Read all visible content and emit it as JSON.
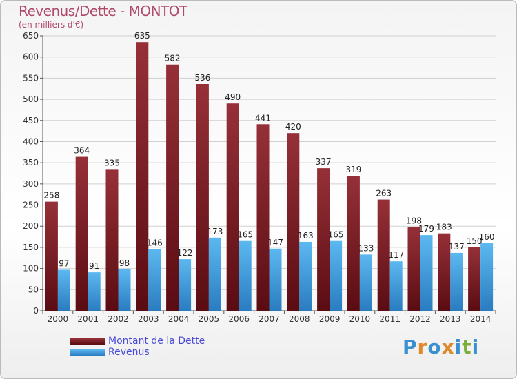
{
  "chart_data": {
    "type": "bar",
    "title": "Revenus/Dette - MONTOT",
    "subtitle": "(en milliers d'€)",
    "xlabel": "",
    "ylabel": "",
    "ylim": [
      0,
      650
    ],
    "yticks": [
      0,
      50,
      100,
      150,
      200,
      250,
      300,
      350,
      400,
      450,
      500,
      550,
      600,
      650
    ],
    "grid": true,
    "legend_position": "bottom-left",
    "categories": [
      "2000",
      "2001",
      "2002",
      "2003",
      "2004",
      "2005",
      "2006",
      "2007",
      "2008",
      "2009",
      "2010",
      "2011",
      "2012",
      "2013",
      "2014"
    ],
    "series": [
      {
        "name": "Montant de la Dette",
        "color": "#7a1c24",
        "values": [
          258,
          364,
          335,
          635,
          582,
          536,
          490,
          441,
          420,
          337,
          319,
          263,
          198,
          183,
          150
        ]
      },
      {
        "name": "Revenus",
        "color": "#3d9ee0",
        "values": [
          97,
          91,
          98,
          146,
          122,
          173,
          165,
          147,
          163,
          165,
          133,
          117,
          179,
          137,
          160
        ]
      }
    ]
  },
  "logo": {
    "letters": [
      "P",
      "r",
      "o",
      "x",
      "i",
      "t",
      "i"
    ],
    "colors": [
      "#3a8fd0",
      "#e0892a",
      "#3a8fd0",
      "#e0892a",
      "#3a8fd0",
      "#7ab03a",
      "#3a8fd0"
    ]
  }
}
